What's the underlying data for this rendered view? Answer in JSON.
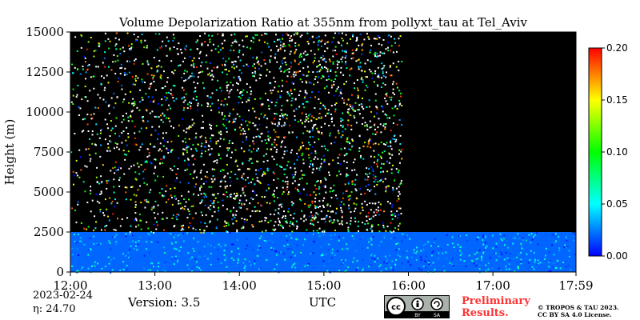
{
  "chart_data": {
    "type": "heatmap",
    "title": "Volume Depolarization Ratio at 355nm from pollyxt_tau at Tel_Aviv",
    "xlabel": "UTC",
    "ylabel": "Height (m)",
    "x_ticks": [
      "12:00",
      "13:00",
      "14:00",
      "15:00",
      "16:00",
      "17:00",
      "17:59"
    ],
    "x_range": [
      "12:00",
      "17:59"
    ],
    "y_ticks": [
      0,
      2500,
      5000,
      7500,
      10000,
      12500,
      15000
    ],
    "y_range": [
      0,
      15000
    ],
    "colorbar": {
      "ticks": [
        "0.00",
        "0.05",
        "0.10",
        "0.15",
        "0.20"
      ],
      "range": [
        0,
        0.2
      ],
      "colormap": "jet",
      "colors": [
        "#0000ff",
        "#00ffff",
        "#00ff00",
        "#ffff00",
        "#ff0000"
      ]
    },
    "background_color": "#000000",
    "regions": [
      {
        "desc": "boundary layer",
        "x_from": "12:00",
        "x_to": "17:59",
        "y_from": 0,
        "y_to": 2500,
        "value": 0.02
      },
      {
        "desc": "noisy signal",
        "x_from": "12:00",
        "x_to": "15:55",
        "y_from": 2500,
        "y_to": 15000,
        "value": "noise"
      },
      {
        "desc": "no signal",
        "x_from": "15:55",
        "x_to": "17:59",
        "y_from": 2500,
        "y_to": 15000,
        "value": null
      }
    ]
  },
  "footer": {
    "date": "2023-02-24",
    "eta": "η:  24.70",
    "version": "Version: 3.5",
    "utc_label": "UTC",
    "preliminary_line1": "Preliminary",
    "preliminary_line2": "Results.",
    "copyright_line1": "© TROPOS & TAU 2023.",
    "copyright_line2": "CC BY SA 4.0 License.",
    "license_badge": {
      "by": "BY",
      "sa": "SA"
    }
  }
}
